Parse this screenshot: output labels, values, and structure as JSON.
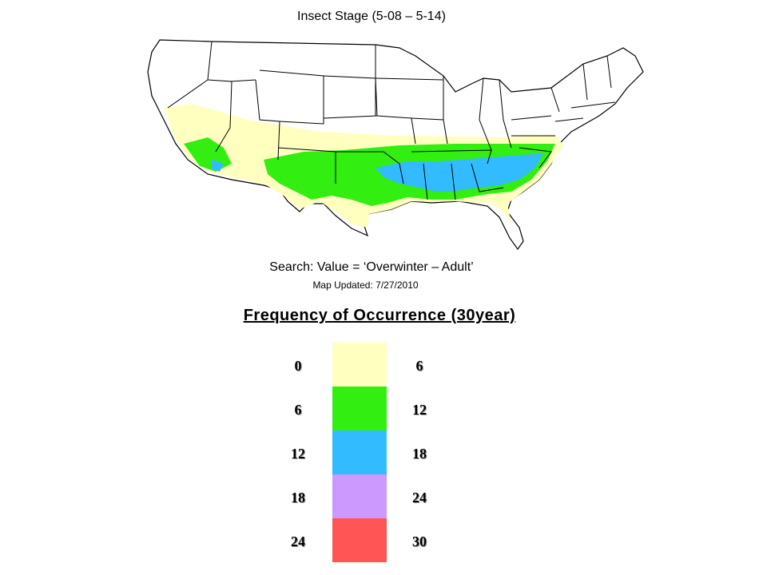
{
  "title": "Insect Stage (5-08 – 5-14)",
  "search_text": "Search: Value = ‘Overwinter – Adult’",
  "map_updated": "Map Updated: 7/27/2010",
  "legend": {
    "title": "Frequency of Occurrence (30year)",
    "items": [
      {
        "low": "0",
        "high": "6",
        "color": "#ffffc0"
      },
      {
        "low": "6",
        "high": "12",
        "color": "#33ee11"
      },
      {
        "low": "12",
        "high": "18",
        "color": "#33bbff"
      },
      {
        "low": "18",
        "high": "24",
        "color": "#cc99ff"
      },
      {
        "low": "24",
        "high": "30",
        "color": "#ff5555"
      }
    ]
  }
}
